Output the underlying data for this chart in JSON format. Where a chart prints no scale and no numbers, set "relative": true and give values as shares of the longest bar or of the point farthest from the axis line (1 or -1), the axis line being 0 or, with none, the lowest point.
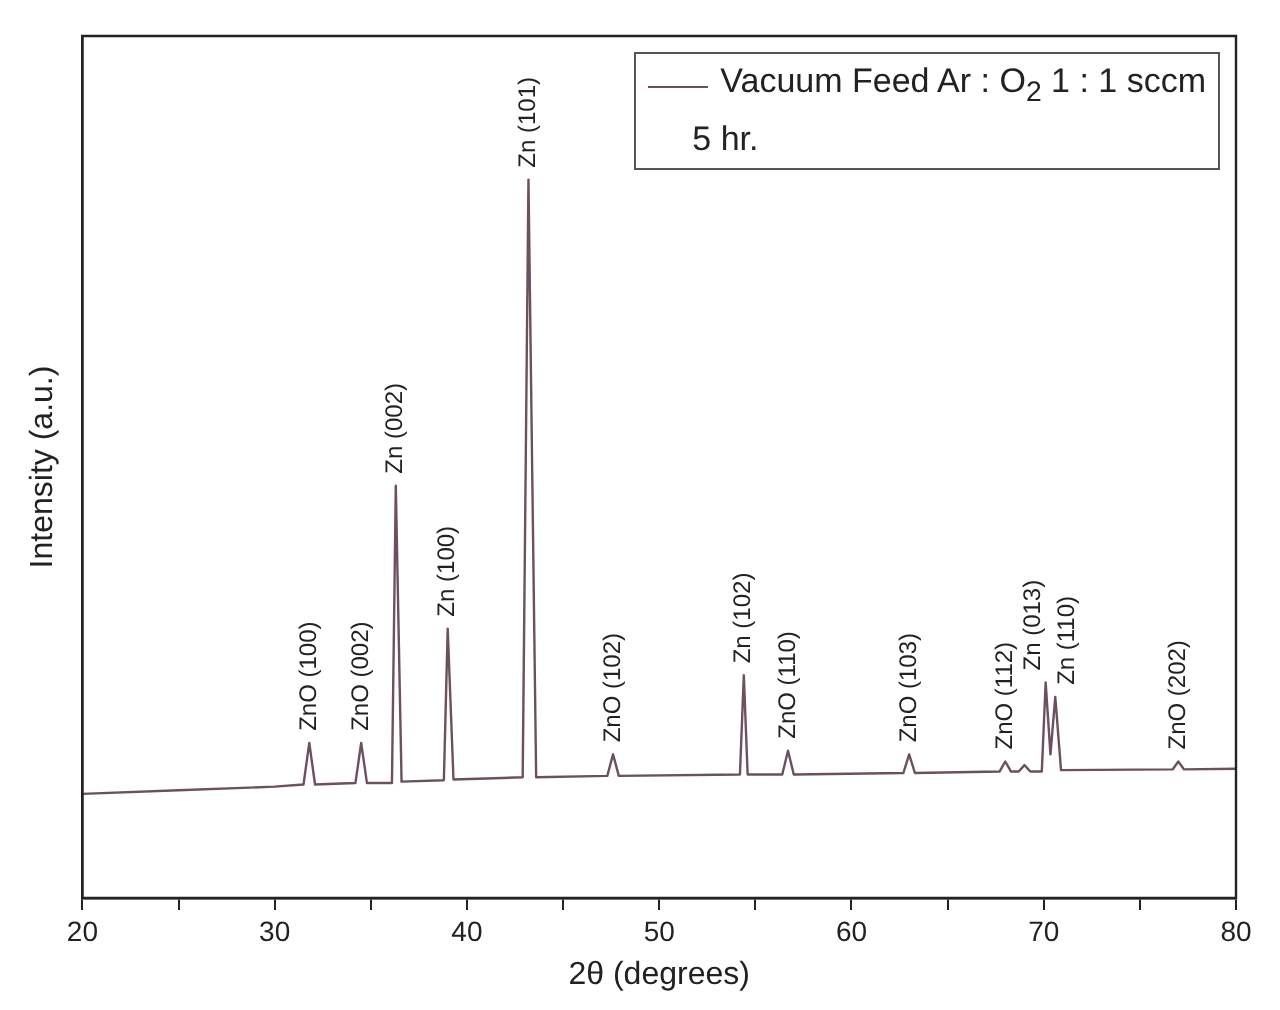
{
  "chart_data": {
    "type": "line",
    "xlabel": "2θ (degrees)",
    "ylabel": "Intensity (a.u.)",
    "relative": true,
    "xlim": [
      20,
      80
    ],
    "xticks": [
      20,
      {
        "value": 25,
        "label": null
      },
      30,
      {
        "value": 35,
        "label": null
      },
      40,
      {
        "value": 45,
        "label": null
      },
      50,
      {
        "value": 55,
        "label": null
      },
      60,
      {
        "value": 65,
        "label": null
      },
      70,
      {
        "value": 75,
        "label": null
      },
      80
    ],
    "tick_labels": "x",
    "grid": false,
    "legend": "top right",
    "marker": "none",
    "line_style": "solid",
    "series": [
      {
        "name": "Vacuum Feed Ar : O$_{2}$ 1 : 1 sccm",
        "color": "#6e4f60",
        "x": [
          20,
          25,
          30,
          31.5,
          31.8,
          32.1,
          34.2,
          34.5,
          34.8,
          36.1,
          36.3,
          36.6,
          38.8,
          39.0,
          39.3,
          42.9,
          43.2,
          43.6,
          47.3,
          47.6,
          47.9,
          54.2,
          54.4,
          54.6,
          56.4,
          56.7,
          57.0,
          62.7,
          63.0,
          63.3,
          67.7,
          68.0,
          68.3,
          68.7,
          69.0,
          69.3,
          69.9,
          70.1,
          70.35,
          70.6,
          70.9,
          76.7,
          77.0,
          77.3,
          80
        ],
        "values": [
          0.145,
          0.15,
          0.155,
          0.158,
          0.216,
          0.158,
          0.16,
          0.216,
          0.16,
          0.16,
          0.574,
          0.162,
          0.164,
          0.375,
          0.165,
          0.168,
          1.0,
          0.168,
          0.17,
          0.2,
          0.17,
          0.172,
          0.31,
          0.172,
          0.172,
          0.205,
          0.172,
          0.174,
          0.2,
          0.174,
          0.176,
          0.19,
          0.176,
          0.176,
          0.185,
          0.176,
          0.176,
          0.3,
          0.2,
          0.28,
          0.178,
          0.179,
          0.19,
          0.179,
          0.18
        ]
      }
    ],
    "annotations": [
      "5 hr.",
      {
        "text": "ZnO (100)",
        "x": 31.8,
        "y": 0.216
      },
      {
        "text": "ZnO (002)",
        "x": 34.5,
        "y": 0.216
      },
      {
        "text": "Zn (002)",
        "x": 36.3,
        "y": 0.574
      },
      {
        "text": "Zn (100)",
        "x": 39.0,
        "y": 0.375
      },
      {
        "text": "Zn (101)",
        "x": 43.2,
        "y": 1.0
      },
      {
        "text": "ZnO (102)",
        "x": 47.6,
        "y": 0.2
      },
      {
        "text": "Zn (102)",
        "x": 54.4,
        "y": 0.31
      },
      {
        "text": "ZnO (110)",
        "x": 56.7,
        "y": 0.205
      },
      {
        "text": "ZnO (103)",
        "x": 63.0,
        "y": 0.2
      },
      {
        "text": "ZnO (112)",
        "x": 68.0,
        "y": 0.19
      },
      {
        "text": "Zn (013)",
        "x": 70.1,
        "y": 0.3
      },
      {
        "text": "Zn (110)",
        "x": 70.6,
        "y": 0.28
      },
      {
        "text": "ZnO (202)",
        "x": 77.0,
        "y": 0.19
      }
    ]
  }
}
